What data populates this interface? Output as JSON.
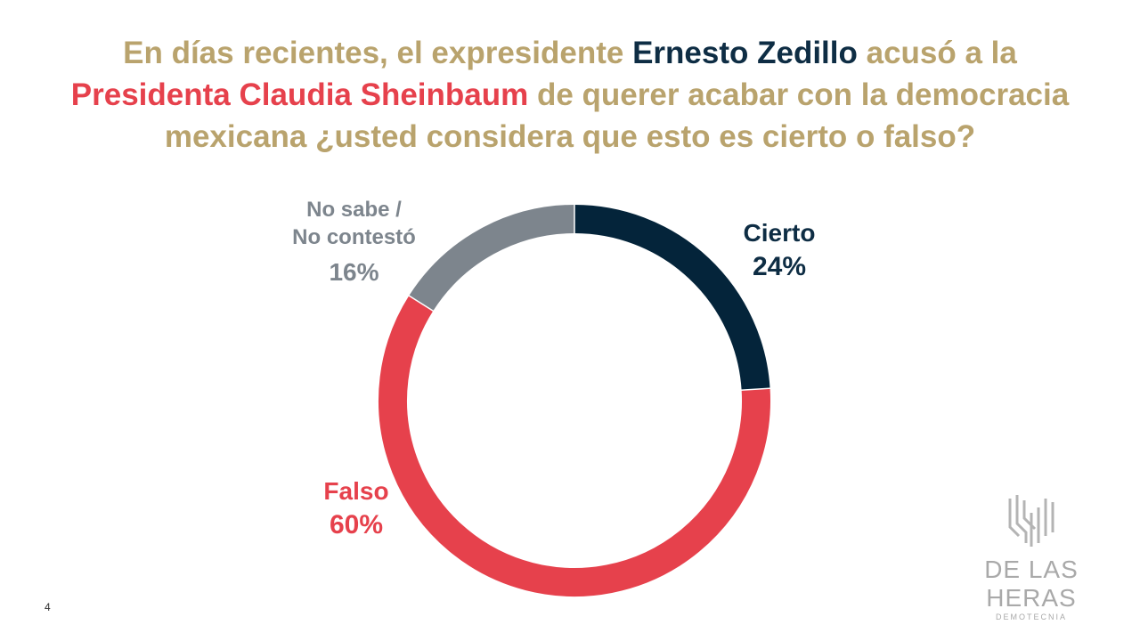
{
  "title": {
    "line1_part1": "En días recientes, el expresidente ",
    "line1_part2": "Ernesto Zedillo",
    "line1_part3": " acusó a la",
    "line2_part1": "Presidenta Claudia Sheinbaum",
    "line2_part2": " de querer acabar con la democracia",
    "line3": "mexicana ¿usted considera que esto es cierto o falso?"
  },
  "chart_data": {
    "type": "pie",
    "variant": "donut",
    "categories": [
      "Cierto",
      "Falso",
      "No sabe / No contestó"
    ],
    "values": [
      24,
      60,
      16
    ],
    "value_labels": [
      "24%",
      "60%",
      "16%"
    ],
    "colors": [
      "#04243a",
      "#e6414c",
      "#7d858d"
    ],
    "label_lines": {
      "nosabe_line1": "No sabe /",
      "nosabe_line2": "No contestó"
    }
  },
  "slide_number": "4",
  "logo": {
    "name": "DE LAS HERAS",
    "subtitle": "DEMOTECNIA",
    "icon": "building-columns-logo-icon"
  }
}
